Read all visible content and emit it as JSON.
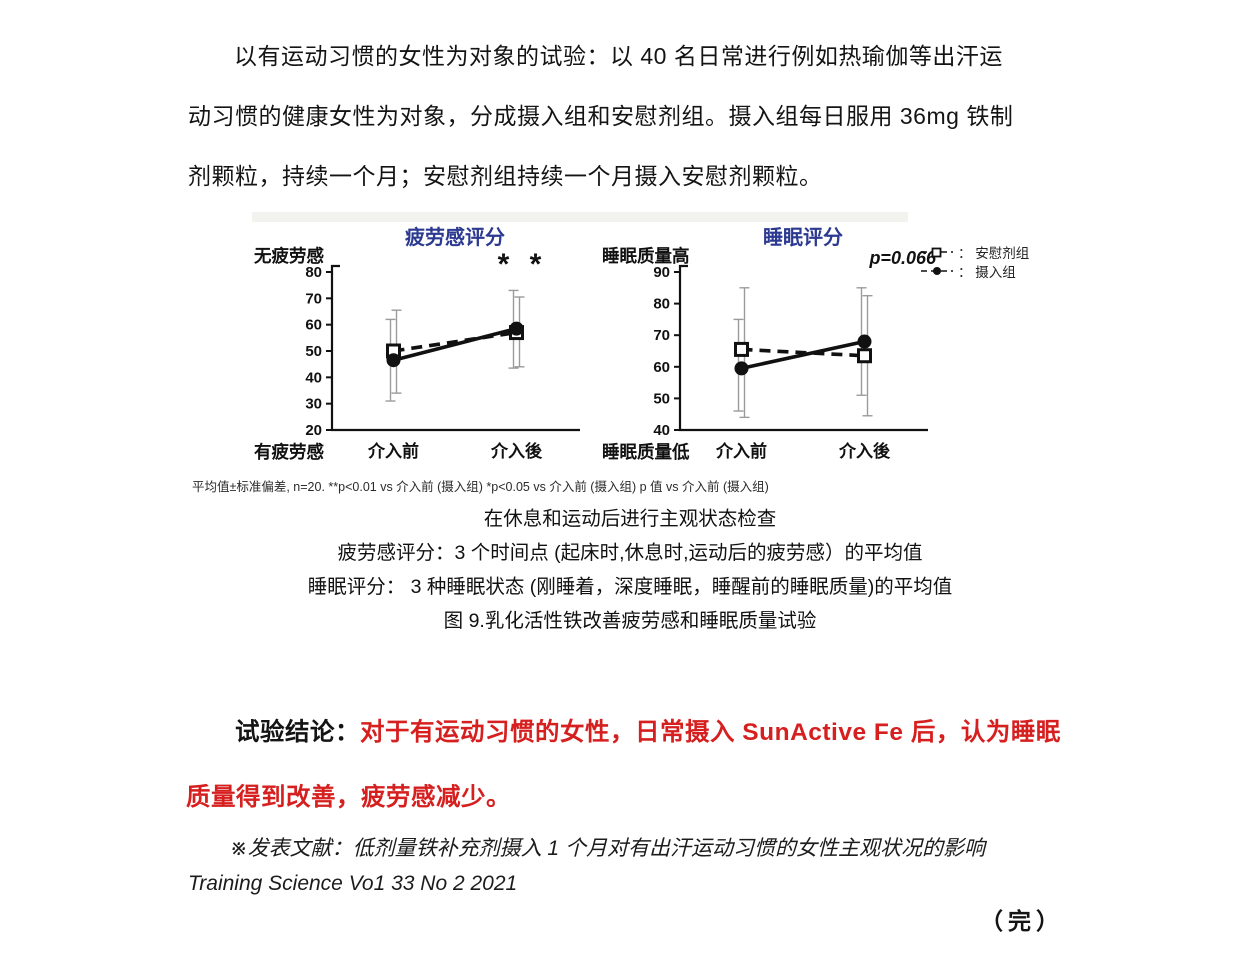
{
  "intro_paragraph": "以有运动习惯的女性为对象的试验：以 40 名日常进行例如热瑜伽等出汗运\n动习惯的健康女性为对象，分成摄入组和安慰剂组。摄入组每日服用 36mg 铁制\n剂颗粒，持续一个月；安慰剂组持续一个月摄入安慰剂颗粒。",
  "figure": {
    "legend": {
      "separator": "： ",
      "items": [
        {
          "marker": "open-square",
          "dash": true,
          "label": "安慰剂组"
        },
        {
          "marker": "filled-circle",
          "dash": true,
          "label": "摄入组"
        }
      ]
    },
    "footnote": "平均值±标准偏差, n=20. **p<0.01 vs 介入前  (摄入组)   *p<0.05 vs 介入前  (摄入组)   p 值 vs 介入前  (摄入组)"
  },
  "chart_data": [
    {
      "type": "line",
      "title": "疲劳感评分",
      "y_top_label": "无疲劳感",
      "y_bottom_label": "有疲劳感",
      "xlabel": "",
      "ylabel": "",
      "categories": [
        "介入前",
        "介入後"
      ],
      "ylim": [
        20,
        80
      ],
      "yticks": [
        20,
        30,
        40,
        50,
        60,
        70,
        80
      ],
      "grid": false,
      "legend_position": "right-top",
      "annotation": {
        "text": "* *",
        "style": "stars"
      },
      "series": [
        {
          "name": "安慰剂组",
          "marker": "open-square",
          "dash": true,
          "values": [
            50,
            57
          ],
          "err_low": [
            34,
            44
          ],
          "err_high": [
            65.5,
            70.5
          ]
        },
        {
          "name": "摄入组",
          "marker": "filled-circle",
          "dash": false,
          "values": [
            46.5,
            58.5
          ],
          "err_low": [
            31,
            43.5
          ],
          "err_high": [
            62,
            73
          ]
        }
      ]
    },
    {
      "type": "line",
      "title": "睡眠评分",
      "y_top_label": "睡眠质量高",
      "y_bottom_label": "睡眠质量低",
      "xlabel": "",
      "ylabel": "",
      "categories": [
        "介入前",
        "介入後"
      ],
      "ylim": [
        40,
        90
      ],
      "yticks": [
        40,
        50,
        60,
        70,
        80,
        90
      ],
      "grid": false,
      "legend_position": "right-top",
      "annotation": {
        "text": "p=0.066",
        "style": "pvalue"
      },
      "series": [
        {
          "name": "安慰剂组",
          "marker": "open-square",
          "dash": true,
          "values": [
            65.5,
            63.5
          ],
          "err_low": [
            44,
            44.5
          ],
          "err_high": [
            85,
            82.5
          ]
        },
        {
          "name": "摄入组",
          "marker": "filled-circle",
          "dash": false,
          "values": [
            59.5,
            68
          ],
          "err_low": [
            46,
            51
          ],
          "err_high": [
            75,
            85
          ]
        }
      ]
    }
  ],
  "caption": {
    "lines": [
      "在休息和运动后进行主观状态检查",
      "疲劳感评分：3 个时间点 (起床时,休息时,运动后的疲劳感）的平均值",
      "睡眠评分： 3 种睡眠状态 (刚睡着，深度睡眠，睡醒前的睡眠质量)的平均值",
      "图 9.乳化活性铁改善疲劳感和睡眠质量试验"
    ]
  },
  "conclusion": {
    "label": "试验结论：",
    "text": "对于有运动习惯的女性，日常摄入 SunActive Fe 后，认为睡眠\n质量得到改善，疲劳感减少。"
  },
  "reference": {
    "line_cn": "※发表文献：低剂量铁补充剂摄入 1 个月对有出汗运动习惯的女性主观状况的影响",
    "line_en": "Training Science Vo1 33 No 2 2021"
  },
  "end_mark": "（完）",
  "colors": {
    "chart_title": "#2b3990",
    "conclusion_red": "#d61f1f",
    "error_bar": "#9b9b9b",
    "ink": "#111111"
  }
}
